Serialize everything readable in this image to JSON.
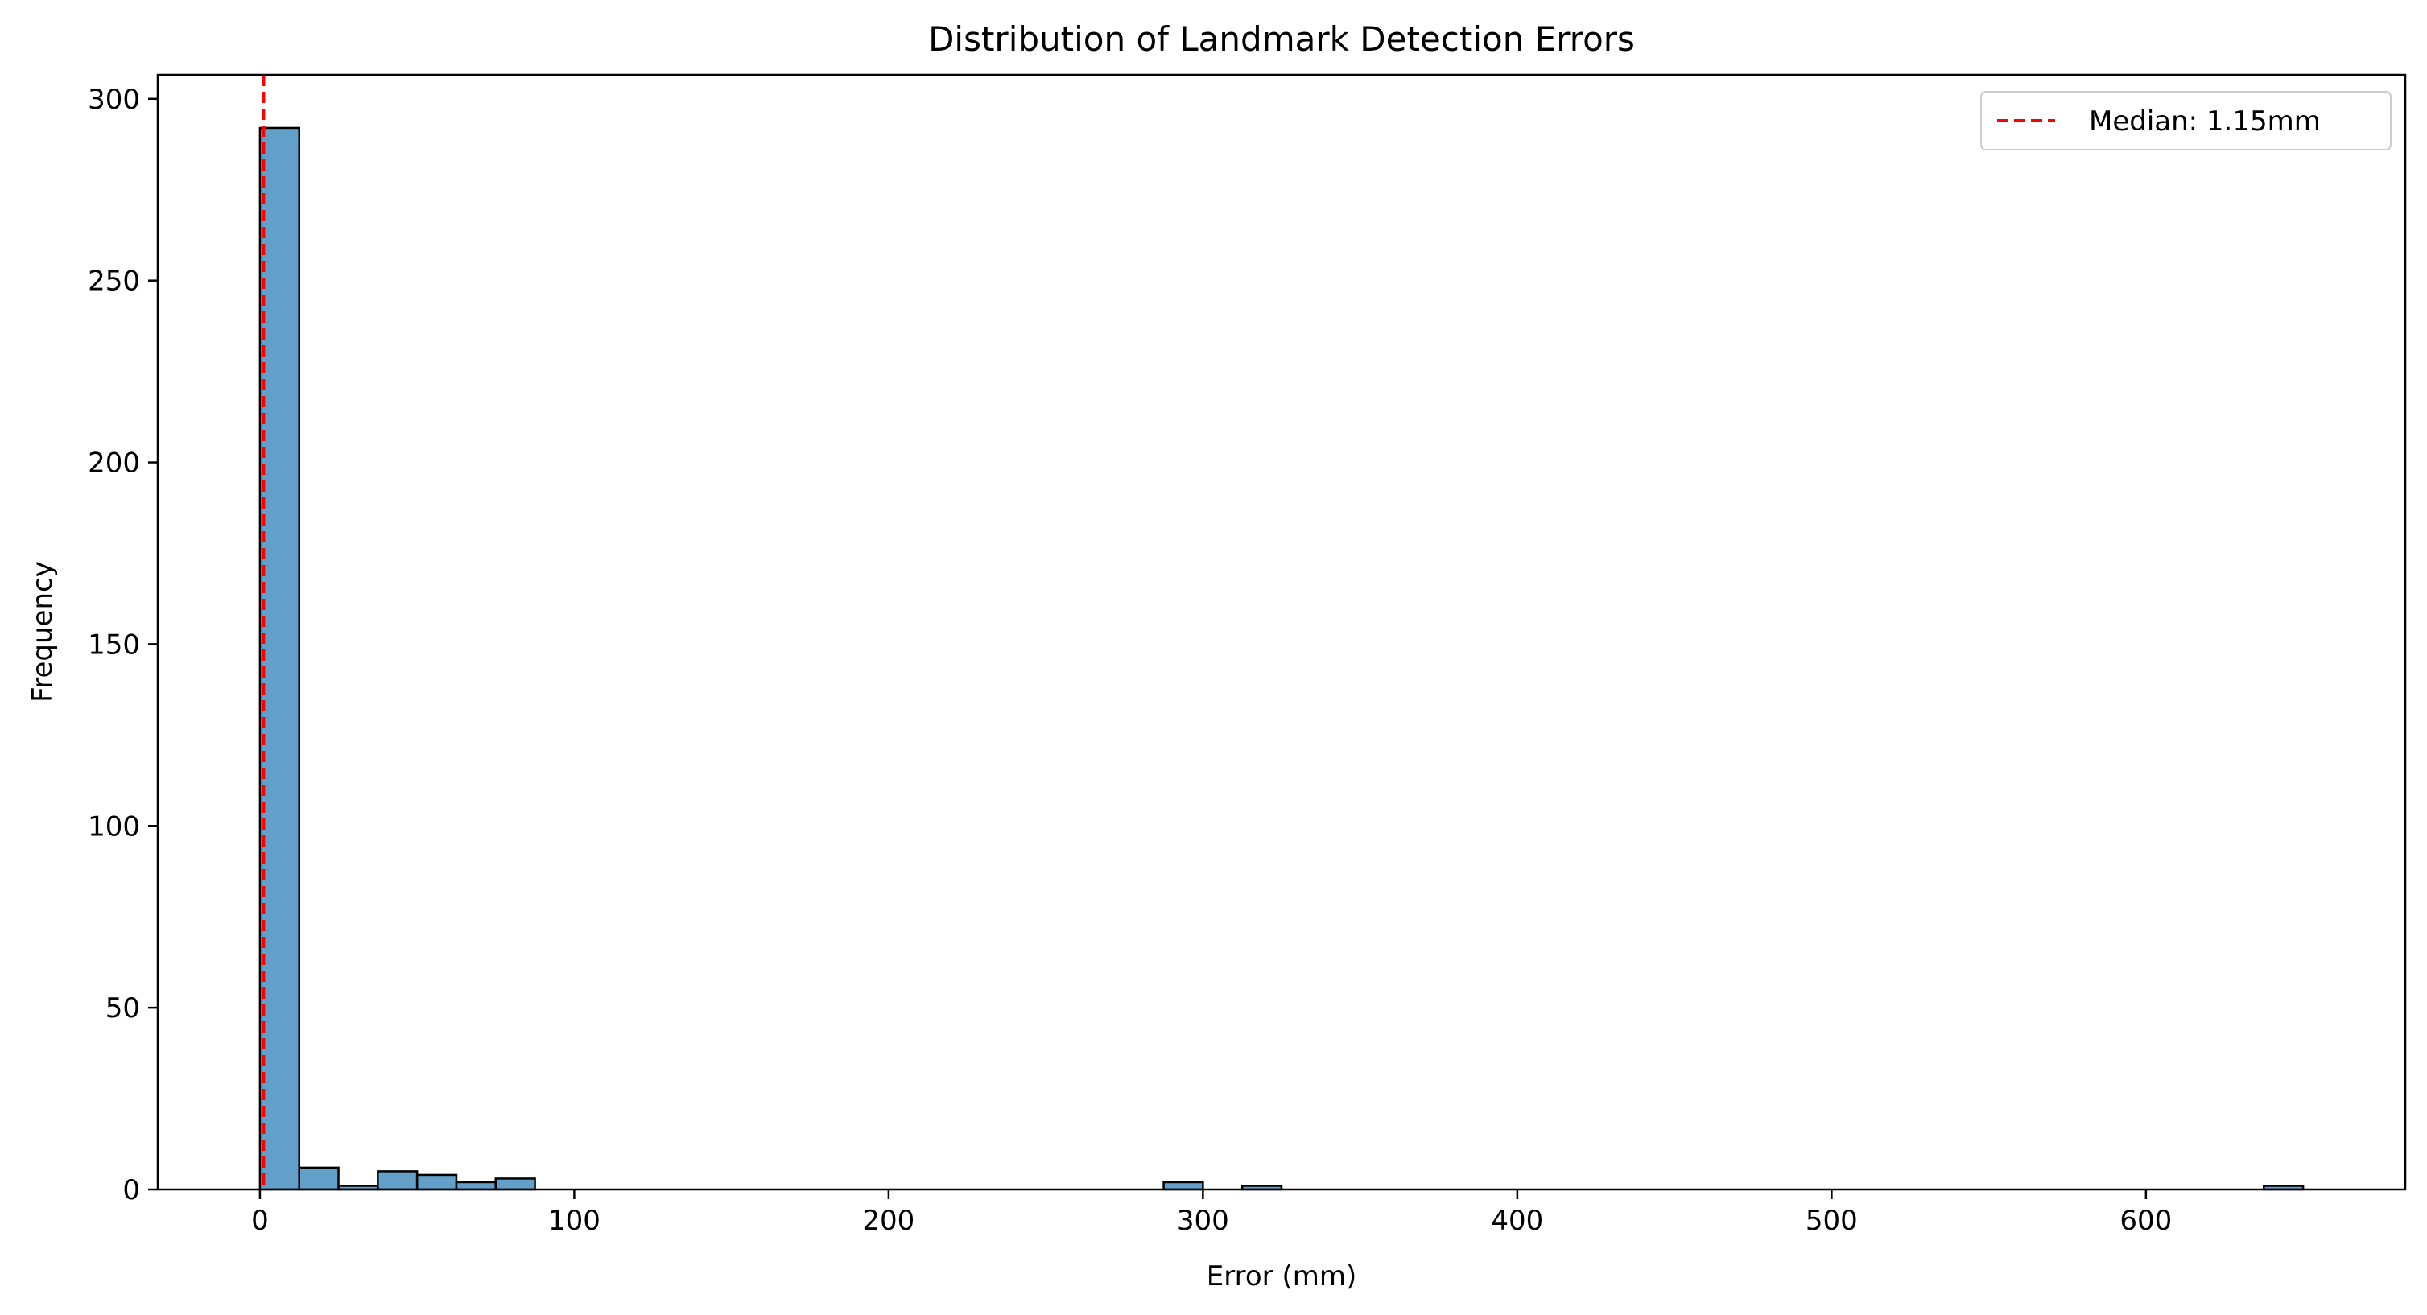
{
  "chart_data": {
    "type": "bar",
    "title": "Distribution of Landmark Detection Errors",
    "xlabel": "Error (mm)",
    "ylabel": "Frequency",
    "xlim": [
      -32.5,
      682.5
    ],
    "ylim": [
      0,
      306.6
    ],
    "xticks": [
      0,
      100,
      200,
      300,
      400,
      500,
      600
    ],
    "yticks": [
      0,
      50,
      100,
      150,
      200,
      250,
      300
    ],
    "grid": false,
    "legend_position": "top-right",
    "bar_color": "#1f77b4",
    "bar_edge_color": "#000000",
    "bins": {
      "start": 0,
      "width": 12.5,
      "counts": [
        292,
        6,
        1,
        5,
        4,
        2,
        3,
        0,
        0,
        0,
        0,
        0,
        0,
        0,
        0,
        0,
        0,
        0,
        0,
        0,
        0,
        0,
        0,
        2,
        0,
        1,
        0,
        0,
        0,
        0,
        0,
        0,
        0,
        0,
        0,
        0,
        0,
        0,
        0,
        0,
        0,
        0,
        0,
        0,
        0,
        0,
        0,
        0,
        0,
        0,
        0,
        1
      ]
    },
    "median_line": {
      "value": 1.15,
      "label": "Median: 1.15mm",
      "color": "#ff0000",
      "style": "dashed"
    }
  }
}
